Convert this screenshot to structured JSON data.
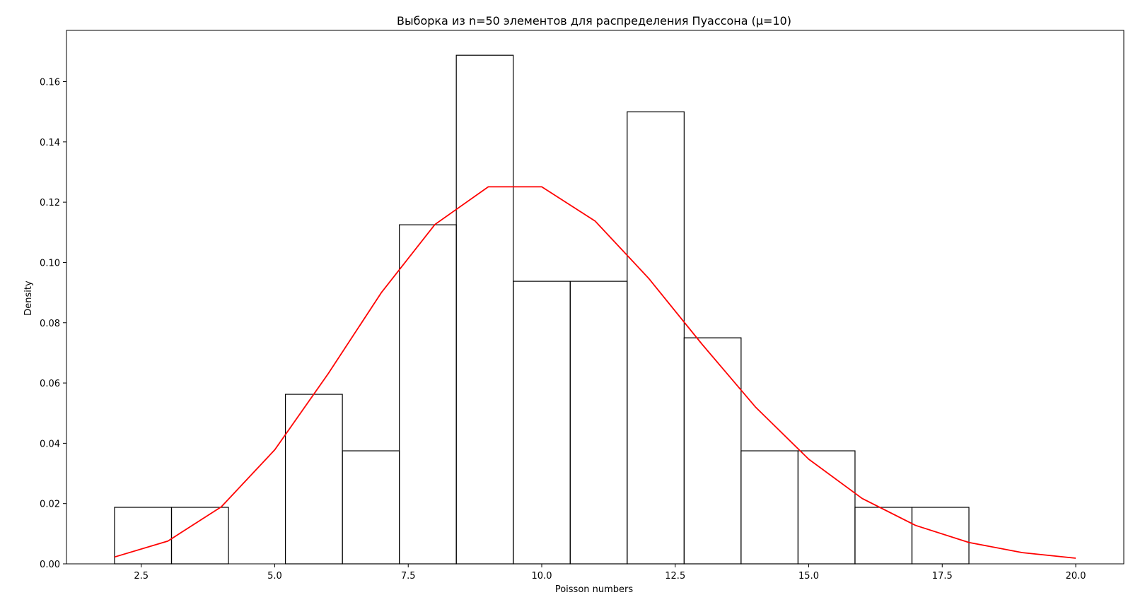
{
  "chart_data": {
    "type": "bar",
    "title": "Выборка из n=50 элементов для распределения Пуассона (μ=10)",
    "xlabel": "Poisson numbers",
    "ylabel": "Density",
    "xlim": [
      1.1,
      20.9
    ],
    "ylim": [
      0.0,
      0.177
    ],
    "grid": false,
    "x_ticks": [
      2.5,
      5.0,
      7.5,
      10.0,
      12.5,
      15.0,
      17.5,
      20.0
    ],
    "x_tick_labels": [
      "2.5",
      "5.0",
      "7.5",
      "10.0",
      "12.5",
      "15.0",
      "17.5",
      "20.0"
    ],
    "y_ticks": [
      0.0,
      0.02,
      0.04,
      0.06,
      0.08,
      0.1,
      0.12,
      0.14,
      0.16
    ],
    "y_tick_labels": [
      "0.00",
      "0.02",
      "0.04",
      "0.06",
      "0.08",
      "0.10",
      "0.12",
      "0.14",
      "0.16"
    ],
    "histogram": {
      "bin_edges": [
        2.0,
        3.0667,
        4.1333,
        5.2,
        6.2667,
        7.3333,
        8.4,
        9.4667,
        10.5333,
        11.6,
        12.6667,
        13.7333,
        14.8,
        15.8667,
        16.9333,
        18.0
      ],
      "densities": [
        0.01875,
        0.01875,
        0.0,
        0.05625,
        0.0375,
        0.1125,
        0.16875,
        0.09375,
        0.09375,
        0.15,
        0.075,
        0.0375,
        0.0375,
        0.01875,
        0.01875
      ],
      "edge_color": "#000000",
      "fill_color": "none"
    },
    "pmf_line": {
      "color": "#ff0000",
      "x": [
        2,
        3,
        4,
        5,
        6,
        7,
        8,
        9,
        10,
        11,
        12,
        13,
        14,
        15,
        16,
        17,
        18,
        19,
        20
      ],
      "y": [
        0.00227,
        0.00757,
        0.01892,
        0.03783,
        0.06306,
        0.09008,
        0.1126,
        0.12511,
        0.12511,
        0.11374,
        0.09478,
        0.07291,
        0.05208,
        0.03472,
        0.0217,
        0.01276,
        0.00709,
        0.00373,
        0.00187
      ]
    }
  }
}
